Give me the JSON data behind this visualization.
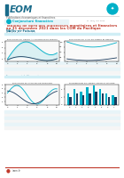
{
  "background_color": "#ffffff",
  "logo_bar_color": "#1a6b8a",
  "logo_text": "EOM",
  "pub_line": "Publications économiques et financières",
  "section_label": "Conjoncture financière",
  "issue_label": "N° 189 | Juin 2022",
  "title_line1": "Tableau de bord des indicateurs monétaires et financiers",
  "title_line2": "au 31 décembre 2021 dans les COM du Pacifique",
  "subtitle": "Wallis-et-Futuna",
  "section1_label": "Crédit à l'économie et épargne",
  "section2_label": "Financement de l'économie",
  "chart1_title": "EVOLUTION DU CREDIT A L'ECONOMIE ET DEPOTS",
  "chart2_title": "EVOLUTION DU TAUX DE CREDIT ET DEPOTS",
  "chart3_title": "EVOLUTION DU TAUX DE FINANCEMENT",
  "chart4_title": "DISTRIBUTION DU CREDIT SELON SA NATURE",
  "title_color": "#c0392b",
  "subtitle_color": "#1a6b8a",
  "section_color": "#1a6b8a",
  "accent_color": "#00b0c8",
  "line1_color": "#00b0c8",
  "line2_color": "#1a3a5c",
  "bar_color1": "#00b0c8",
  "bar_color2": "#1a3a5c",
  "footer_color": "#c0392b",
  "globe_color": "#00b0c8",
  "separator_color": "#cccccc",
  "table_bg1": "#e8f4f8",
  "table_bg2": "#f5f5f5",
  "section_bar_color": "#d0eef5"
}
